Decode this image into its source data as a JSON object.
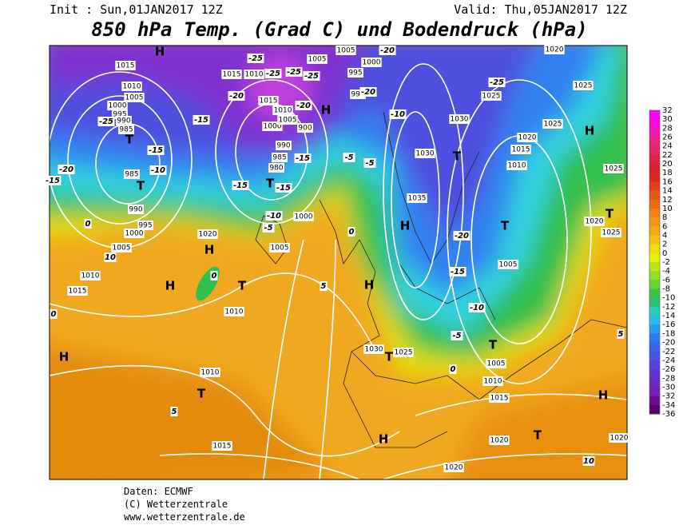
{
  "header": {
    "init": "Init : Sun,01JAN2017 12Z",
    "valid": "Valid: Thu,05JAN2017 12Z",
    "title": "850 hPa Temp. (Grad C) und Bodendruck (hPa)"
  },
  "map": {
    "pressure_centers": [
      "H",
      "T",
      "T",
      "H",
      "T",
      "H",
      "H",
      "T",
      "H",
      "H",
      "T",
      "T",
      "H",
      "T",
      "H",
      "T",
      "H",
      "T",
      "H",
      "T",
      "T"
    ],
    "isobar_labels": [
      "1015",
      "1010",
      "1005",
      "1000",
      "995",
      "990",
      "985",
      "985",
      "990",
      "995",
      "1000",
      "1005",
      "1010",
      "1015",
      "1020",
      "1005",
      "1000",
      "1010",
      "1010",
      "1015",
      "1030",
      "1025",
      "1005",
      "1010",
      "1015",
      "1020",
      "1020",
      "1005",
      "1035",
      "1030",
      "1030",
      "1020",
      "1015",
      "1010",
      "1025",
      "1025",
      "1025",
      "1020",
      "1025",
      "1020",
      "1025",
      "1005",
      "1005",
      "1000",
      "995",
      "990",
      "1015",
      "1010",
      "1015",
      "1010",
      "1000",
      "990",
      "985",
      "980",
      "1005",
      "900",
      "1020"
    ],
    "temperature_labels": [
      "-25",
      "-25",
      "-25",
      "-25",
      "-20",
      "-20",
      "-15",
      "-25",
      "-15",
      "-10",
      "-20",
      "-15",
      "-15",
      "-15",
      "-15",
      "-10",
      "-5",
      "-5",
      "-5",
      "-10",
      "-20",
      "-25",
      "-20",
      "-15",
      "-10",
      "-5",
      "0",
      "0",
      "0",
      "0",
      "5",
      "5",
      "10",
      "0",
      "5",
      "10",
      "-20"
    ]
  },
  "colorbar": {
    "labels": [
      "32",
      "30",
      "28",
      "26",
      "24",
      "22",
      "20",
      "18",
      "16",
      "14",
      "12",
      "10",
      "8",
      "6",
      "4",
      "2",
      "0",
      "-2",
      "-4",
      "-6",
      "-8",
      "-10",
      "-12",
      "-14",
      "-16",
      "-18",
      "-20",
      "-22",
      "-24",
      "-26",
      "-28",
      "-30",
      "-32",
      "-34",
      "-36"
    ]
  },
  "footer": {
    "source": "Daten: ECMWF",
    "copyright": "(C) Wetterzentrale",
    "url": "www.wetterzentrale.de"
  }
}
